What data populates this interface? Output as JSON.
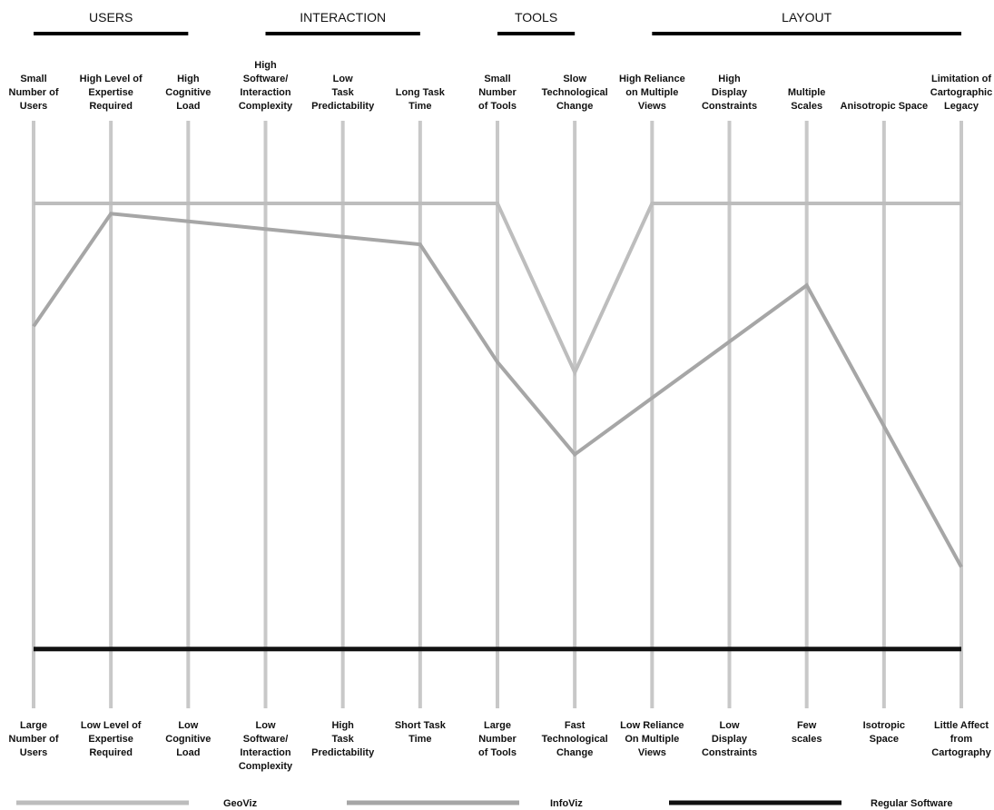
{
  "chart_data": {
    "type": "line",
    "subtype": "parallel-coordinates",
    "y_range": [
      0,
      100
    ],
    "groups": [
      {
        "label": "USERS",
        "axes": [
          0,
          2
        ]
      },
      {
        "label": "INTERACTION",
        "axes": [
          3,
          5
        ]
      },
      {
        "label": "TOOLS",
        "axes": [
          6,
          7
        ]
      },
      {
        "label": "LAYOUT",
        "axes": [
          8,
          12
        ]
      }
    ],
    "axes": [
      {
        "top": "Small\nNumber of\nUsers",
        "bottom": "Large\nNumber of\nUsers"
      },
      {
        "top": "High Level of\nExpertise\nRequired",
        "bottom": "Low Level of\nExpertise\nRequired"
      },
      {
        "top": "High\nCognitive\nLoad",
        "bottom": "Low\nCognitive\nLoad"
      },
      {
        "top": "High\nSoftware/\nInteraction\nComplexity",
        "bottom": "Low\nSoftware/\nInteraction\nComplexity"
      },
      {
        "top": "Low\nTask\nPredictability",
        "bottom": "High\nTask\nPredictability"
      },
      {
        "top": "Long Task\nTime",
        "bottom": "Short Task\nTime"
      },
      {
        "top": "Small\nNumber\nof Tools",
        "bottom": "Large\nNumber\nof Tools"
      },
      {
        "top": "Slow\nTechnological\nChange",
        "bottom": "Fast\nTechnological\nChange"
      },
      {
        "top": "High Reliance\non Multiple\nViews",
        "bottom": "Low Reliance\nOn Multiple\nViews"
      },
      {
        "top": "High\nDisplay\nConstraints",
        "bottom": "Low\nDisplay\nConstraints"
      },
      {
        "top": "Multiple\nScales",
        "bottom": "Few\nscales"
      },
      {
        "top": "Anisotropic Space",
        "bottom": "Isotropic\nSpace"
      },
      {
        "top": "Limitation of\nCartographic\nLegacy",
        "bottom": "Little Affect\nfrom\nCartography"
      }
    ],
    "series": [
      {
        "name": "GeoViz",
        "color": "#bdbdbd",
        "values": [
          100,
          100,
          100,
          100,
          100,
          100,
          100,
          67,
          100,
          100,
          100,
          100,
          100
        ]
      },
      {
        "name": "InfoViz",
        "color": "#a6a6a6",
        "values": [
          76,
          98,
          96.5,
          95,
          93.5,
          92,
          69,
          51,
          62,
          73,
          84,
          56.5,
          29
        ]
      },
      {
        "name": "Regular Software",
        "color": "#111111",
        "values": [
          13,
          13,
          13,
          13,
          13,
          13,
          13,
          13,
          13,
          13,
          13,
          13,
          13
        ]
      }
    ]
  }
}
